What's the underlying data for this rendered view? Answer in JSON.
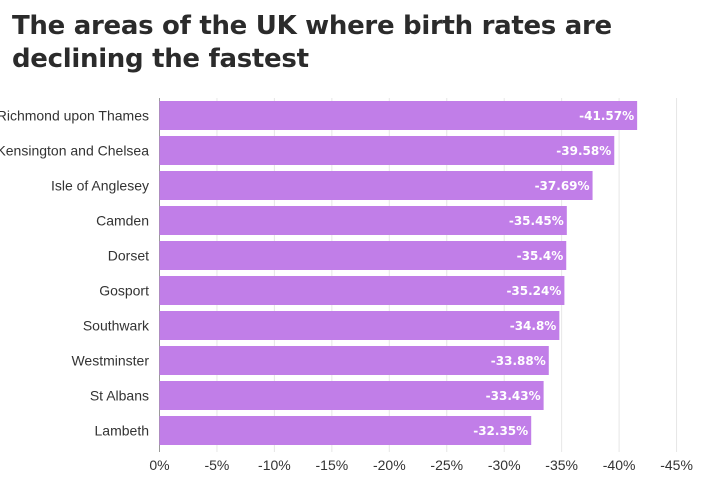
{
  "chart_data": {
    "type": "bar",
    "orientation": "horizontal",
    "title": "The areas of the UK where birth rates are declining the fastest",
    "xlabel": "",
    "ylabel": "",
    "categories": [
      "Richmond upon Thames",
      "Kensington and Chelsea",
      "Isle of Anglesey",
      "Camden",
      "Dorset",
      "Gosport",
      "Southwark",
      "Westminster",
      "St Albans",
      "Lambeth"
    ],
    "values": [
      -41.57,
      -39.58,
      -37.69,
      -35.45,
      -35.4,
      -35.24,
      -34.8,
      -33.88,
      -33.43,
      -32.35
    ],
    "data_labels": [
      "-41.57%",
      "-39.58%",
      "-37.69%",
      "-35.45%",
      "-35.4%",
      "-35.24%",
      "-34.8%",
      "-33.88%",
      "-33.43%",
      "-32.35%"
    ],
    "xlim": [
      0,
      -45
    ],
    "x_ticks": [
      0,
      -5,
      -10,
      -15,
      -20,
      -25,
      -30,
      -35,
      -40,
      -45
    ],
    "x_tick_labels": [
      "0%",
      "-5%",
      "-10%",
      "-15%",
      "-20%",
      "-25%",
      "-30%",
      "-35%",
      "-40%",
      "-45%"
    ],
    "grid": true,
    "legend": "none",
    "bar_color": "#c17ee8"
  }
}
